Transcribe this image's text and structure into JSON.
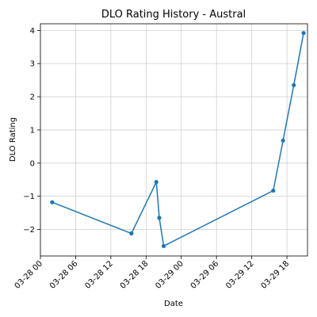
{
  "chart_data": {
    "type": "line",
    "title": "DLO Rating History - Austral",
    "xlabel": "Date",
    "ylabel": "DLO Rating",
    "x_axis_type": "datetime",
    "xlim": [
      "2024-03-28 00:00",
      "2024-03-29 21:30"
    ],
    "ylim": [
      -2.8,
      4.2
    ],
    "x_ticks": [
      {
        "value": "2024-03-28 00:00",
        "label": "03-28 00"
      },
      {
        "value": "2024-03-28 06:00",
        "label": "03-28 06"
      },
      {
        "value": "2024-03-28 12:00",
        "label": "03-28 12"
      },
      {
        "value": "2024-03-28 18:00",
        "label": "03-28 18"
      },
      {
        "value": "2024-03-29 00:00",
        "label": "03-29 00"
      },
      {
        "value": "2024-03-29 06:00",
        "label": "03-29 06"
      },
      {
        "value": "2024-03-29 12:00",
        "label": "03-29 12"
      },
      {
        "value": "2024-03-29 18:00",
        "label": "03-29 18"
      }
    ],
    "y_ticks": [
      -2,
      -1,
      0,
      1,
      2,
      3,
      4
    ],
    "grid": true,
    "series": [
      {
        "color": "#1f77b4",
        "x": [
          "2024-03-28 02:00",
          "2024-03-28 15:30",
          "2024-03-28 19:45",
          "2024-03-28 20:15",
          "2024-03-28 21:00",
          "2024-03-29 15:40",
          "2024-03-29 17:20",
          "2024-03-29 19:10",
          "2024-03-29 20:50"
        ],
        "y": [
          -1.18,
          -2.12,
          -0.57,
          -1.65,
          -2.5,
          -0.83,
          0.68,
          2.35,
          3.92
        ]
      }
    ]
  }
}
